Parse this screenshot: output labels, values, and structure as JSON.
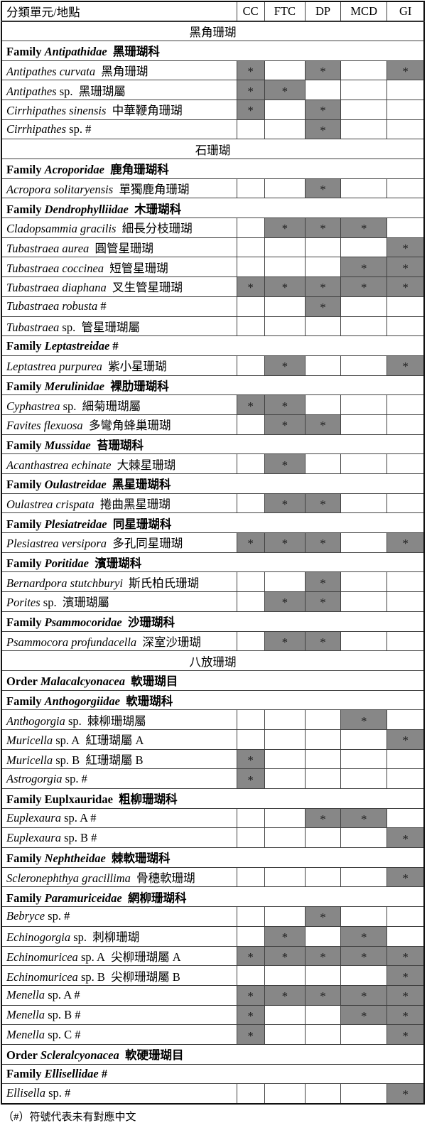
{
  "page": {
    "footnote": "（#）符號代表未有對應中文"
  },
  "table": {
    "header": {
      "taxon_col": "分類單元/地點",
      "location_cols": [
        "CC",
        "FTC",
        "DP",
        "MCD",
        "GI"
      ]
    },
    "mark_char": "*",
    "colors": {
      "shade": "#878787",
      "inner_border": "#404040",
      "outer_border": "#111111",
      "background": "#ffffff",
      "text": "#000000"
    },
    "rows": [
      {
        "type": "section",
        "text": "黑角珊瑚"
      },
      {
        "type": "group",
        "prefix": "Family",
        "name": "Antipathidae",
        "italic": true,
        "suffix": " 黑珊瑚科"
      },
      {
        "type": "species",
        "latin": "Antipathes curvata",
        "rest": " 黑角珊瑚",
        "marks": [
          1,
          0,
          1,
          0,
          1
        ]
      },
      {
        "type": "species",
        "latin": "Antipathes",
        "rest": " sp. 黑珊瑚屬",
        "marks": [
          1,
          1,
          0,
          0,
          0
        ]
      },
      {
        "type": "species",
        "latin": "Cirrhipathes sinensis",
        "rest": " 中華鞭角珊瑚",
        "marks": [
          1,
          0,
          1,
          0,
          0
        ]
      },
      {
        "type": "species",
        "latin": "Cirrhipathes",
        "rest": " sp. #",
        "marks": [
          0,
          0,
          1,
          0,
          0
        ]
      },
      {
        "type": "section",
        "text": "石珊瑚"
      },
      {
        "type": "group",
        "prefix": "Family",
        "name": "Acroporidae",
        "italic": true,
        "suffix": " 鹿角珊瑚科"
      },
      {
        "type": "species",
        "latin": "Acropora solitaryensis",
        "rest": " 單獨鹿角珊瑚",
        "marks": [
          0,
          0,
          1,
          0,
          0
        ]
      },
      {
        "type": "group",
        "prefix": "Family",
        "name": "Dendrophylliidae",
        "italic": true,
        "suffix": " 木珊瑚科"
      },
      {
        "type": "species",
        "latin": "Cladopsammia gracilis",
        "rest": " 細長分枝珊瑚",
        "marks": [
          0,
          1,
          1,
          1,
          0
        ]
      },
      {
        "type": "species",
        "latin": "Tubastraea aurea",
        "rest": " 圓管星珊瑚",
        "marks": [
          0,
          0,
          0,
          0,
          1
        ]
      },
      {
        "type": "species",
        "latin": "Tubastraea coccinea",
        "rest": " 短管星珊瑚",
        "marks": [
          0,
          0,
          0,
          1,
          1
        ]
      },
      {
        "type": "species",
        "latin": "Tubastraea diaphana",
        "rest": " 叉生管星珊瑚",
        "marks": [
          1,
          1,
          1,
          1,
          1
        ]
      },
      {
        "type": "species",
        "latin": "Tubastraea robusta",
        "rest": " #",
        "marks": [
          0,
          0,
          1,
          0,
          0
        ]
      },
      {
        "type": "species",
        "latin": "Tubastraea",
        "rest": " sp. 管星珊瑚屬",
        "marks": [
          0,
          0,
          0,
          0,
          0
        ]
      },
      {
        "type": "group",
        "prefix": "Family",
        "name": "Leptastreidae",
        "italic": true,
        "suffix": " #"
      },
      {
        "type": "species",
        "latin": "Leptastrea purpurea",
        "rest": " 紫小星珊瑚",
        "marks": [
          0,
          1,
          0,
          0,
          1
        ]
      },
      {
        "type": "group",
        "prefix": "Family",
        "name": "Merulinidae",
        "italic": true,
        "suffix": " 裸肋珊瑚科"
      },
      {
        "type": "species",
        "latin": "Cyphastrea",
        "rest": " sp. 細菊珊瑚屬",
        "marks": [
          1,
          1,
          0,
          0,
          0
        ]
      },
      {
        "type": "species",
        "latin": "Favites flexuosa",
        "rest": " 多彎角蜂巢珊瑚",
        "marks": [
          0,
          1,
          1,
          0,
          0
        ]
      },
      {
        "type": "group",
        "prefix": "Family",
        "name": "Mussidae",
        "italic": true,
        "suffix": " 苔珊瑚科"
      },
      {
        "type": "species",
        "latin": "Acanthastrea echinate",
        "rest": " 大棘星珊瑚",
        "marks": [
          0,
          1,
          0,
          0,
          0
        ]
      },
      {
        "type": "group",
        "prefix": "Family",
        "name": "Oulastreidae",
        "italic": true,
        "suffix": " 黑星珊瑚科"
      },
      {
        "type": "species",
        "latin": "Oulastrea crispata",
        "rest": " 捲曲黑星珊瑚",
        "marks": [
          0,
          1,
          1,
          0,
          0
        ]
      },
      {
        "type": "group",
        "prefix": "Family",
        "name": "Plesiatreidae",
        "italic": true,
        "suffix": " 同星珊瑚科"
      },
      {
        "type": "species",
        "latin": "Plesiastrea versipora",
        "rest": " 多孔同星珊瑚",
        "marks": [
          1,
          1,
          1,
          0,
          1
        ]
      },
      {
        "type": "group",
        "prefix": "Family",
        "name": "Poritidae",
        "italic": true,
        "suffix": " 濱珊瑚科"
      },
      {
        "type": "species",
        "latin": "Bernardpora stutchburyi",
        "rest": " 斯氏柏氏珊瑚",
        "marks": [
          0,
          0,
          1,
          0,
          0
        ]
      },
      {
        "type": "species",
        "latin": "Porites",
        "rest": " sp. 濱珊瑚屬",
        "marks": [
          0,
          1,
          1,
          0,
          0
        ]
      },
      {
        "type": "group",
        "prefix": "Family",
        "name": "Psammocoridae",
        "italic": true,
        "suffix": " 沙珊瑚科"
      },
      {
        "type": "species",
        "latin": "Psammocora profundacella",
        "rest": " 深室沙珊瑚",
        "marks": [
          0,
          1,
          1,
          0,
          0
        ]
      },
      {
        "type": "section",
        "text": "八放珊瑚"
      },
      {
        "type": "group",
        "prefix": "Order",
        "name": "Malacalcyonacea",
        "italic": true,
        "suffix": " 軟珊瑚目"
      },
      {
        "type": "group",
        "prefix": "Family",
        "name": "Anthogorgiidae",
        "italic": true,
        "suffix": " 軟珊瑚科"
      },
      {
        "type": "species",
        "latin": "Anthogorgia",
        "rest": " sp. 棘柳珊瑚屬",
        "marks": [
          0,
          0,
          0,
          1,
          0
        ]
      },
      {
        "type": "species",
        "latin": "Muricella",
        "rest": " sp. A 紅珊瑚屬 A",
        "marks": [
          0,
          0,
          0,
          0,
          1
        ]
      },
      {
        "type": "species",
        "latin": "Muricella",
        "rest": " sp. B 紅珊瑚屬 B",
        "marks": [
          1,
          0,
          0,
          0,
          0
        ]
      },
      {
        "type": "species",
        "latin": "Astrogorgia",
        "rest": " sp. #",
        "marks": [
          1,
          0,
          0,
          0,
          0
        ]
      },
      {
        "type": "group",
        "prefix": "Family",
        "name": "Euplxauridae",
        "italic": false,
        "suffix": " 粗柳珊瑚科"
      },
      {
        "type": "species",
        "latin": "Euplexaura",
        "rest": " sp. A #",
        "marks": [
          0,
          0,
          1,
          1,
          0
        ]
      },
      {
        "type": "species",
        "latin": "Euplexaura",
        "rest": " sp. B #",
        "marks": [
          0,
          0,
          0,
          0,
          1
        ]
      },
      {
        "type": "group",
        "prefix": "Family",
        "name": "Nephtheidae",
        "italic": true,
        "suffix": " 棘軟珊瑚科"
      },
      {
        "type": "species",
        "latin": "Scleronephthya gracillima",
        "rest": " 骨穗軟珊瑚",
        "marks": [
          0,
          0,
          0,
          0,
          1
        ]
      },
      {
        "type": "group",
        "prefix": "Family",
        "name": "Paramuriceidae",
        "italic": true,
        "suffix": " 網柳珊瑚科"
      },
      {
        "type": "species",
        "latin": "Bebryce",
        "rest": " sp. #",
        "marks": [
          0,
          0,
          1,
          0,
          0
        ]
      },
      {
        "type": "species",
        "latin": "Echinogorgia",
        "rest": " sp. 刺柳珊瑚",
        "marks": [
          0,
          1,
          0,
          1,
          0
        ]
      },
      {
        "type": "species",
        "latin": "Echinomuricea",
        "rest": " sp. A 尖柳珊瑚屬 A",
        "marks": [
          1,
          1,
          1,
          1,
          1
        ]
      },
      {
        "type": "species",
        "latin": "Echinomuricea",
        "rest": " sp. B 尖柳珊瑚屬 B",
        "marks": [
          0,
          0,
          0,
          0,
          1
        ]
      },
      {
        "type": "species",
        "latin": "Menella",
        "rest": " sp. A #",
        "marks": [
          1,
          1,
          1,
          1,
          1
        ]
      },
      {
        "type": "species",
        "latin": "Menella",
        "rest": " sp. B #",
        "marks": [
          1,
          0,
          0,
          1,
          1
        ]
      },
      {
        "type": "species",
        "latin": "Menella",
        "rest": " sp. C #",
        "marks": [
          1,
          0,
          0,
          0,
          1
        ]
      },
      {
        "type": "group",
        "prefix": "Order",
        "name": "Scleralcyonacea",
        "italic": true,
        "suffix": " 軟硬珊瑚目"
      },
      {
        "type": "group",
        "prefix": "Family",
        "name": "Ellisellidae",
        "italic": true,
        "suffix": " #"
      },
      {
        "type": "species",
        "latin": "Ellisella",
        "rest": " sp. #",
        "marks": [
          0,
          0,
          0,
          0,
          1
        ]
      }
    ]
  }
}
